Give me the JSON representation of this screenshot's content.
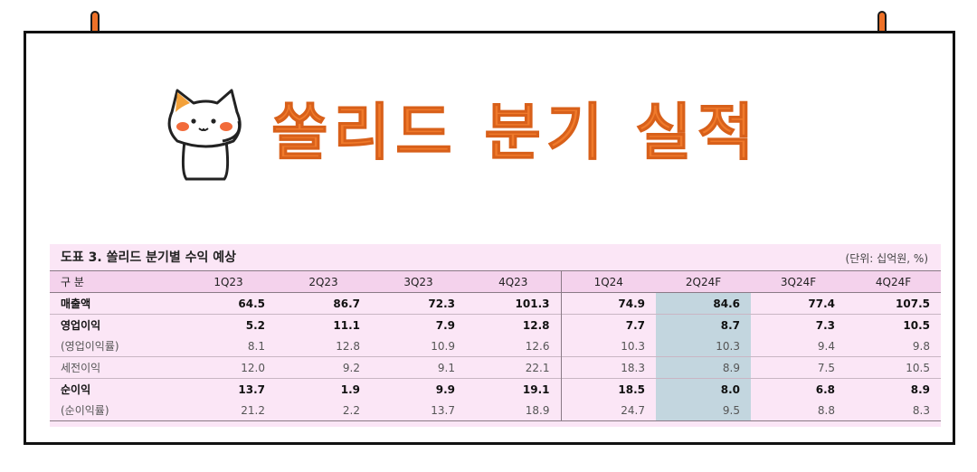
{
  "title": "쏠리드 분기 실적",
  "table": {
    "heading": "도표 3. 쏠리드 분기별 수익 예상",
    "unit": "(단위: 십억원, %)",
    "corner_label": "구 분",
    "columns": [
      "1Q23",
      "2Q23",
      "3Q23",
      "4Q23",
      "1Q24",
      "2Q24F",
      "3Q24F",
      "4Q24F"
    ],
    "rows": [
      {
        "label": "매출액",
        "values": [
          "64.5",
          "86.7",
          "72.3",
          "101.3",
          "74.9",
          "84.6",
          "77.4",
          "107.5"
        ]
      },
      {
        "label": "영업이익",
        "values": [
          "5.2",
          "11.1",
          "7.9",
          "12.8",
          "7.7",
          "8.7",
          "7.3",
          "10.5"
        ]
      },
      {
        "label": "(영업이익률)",
        "values": [
          "8.1",
          "12.8",
          "10.9",
          "12.6",
          "10.3",
          "10.3",
          "9.4",
          "9.8"
        ]
      },
      {
        "label": "세전이익",
        "values": [
          "12.0",
          "9.2",
          "9.1",
          "22.1",
          "18.3",
          "8.9",
          "7.5",
          "10.5"
        ]
      },
      {
        "label": "순이익",
        "values": [
          "13.7",
          "1.9",
          "9.9",
          "19.1",
          "18.5",
          "8.0",
          "6.8",
          "8.9"
        ]
      },
      {
        "label": "(순이익률)",
        "values": [
          "21.2",
          "2.2",
          "13.7",
          "18.9",
          "24.7",
          "9.5",
          "8.8",
          "8.3"
        ]
      }
    ]
  },
  "colors": {
    "title_orange": "#f07a2b",
    "table_bg": "#fbe6f6",
    "highlight_column": "#c3d6df"
  },
  "icons": [
    "pin-icon",
    "cat-mascot-icon"
  ]
}
